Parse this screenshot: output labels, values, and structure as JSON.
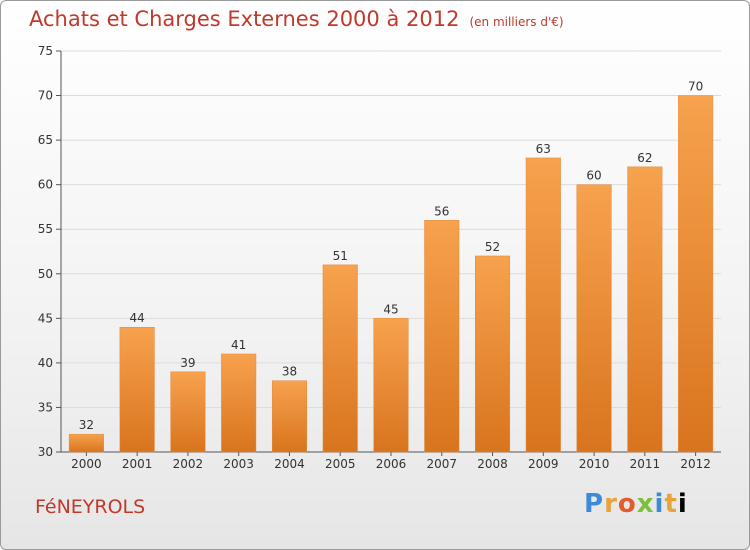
{
  "header": {
    "title": "Achats et Charges Externes 2000 à 2012",
    "unit": "(en milliers d'€)"
  },
  "footer": {
    "city": "FéNEYROLS",
    "logo": [
      "P",
      "r",
      "o",
      "x",
      "i",
      "t",
      "i"
    ]
  },
  "chart_data": {
    "type": "bar",
    "title": "Achats et Charges Externes 2000 à 2012",
    "subtitle": "(en milliers d'€)",
    "categories": [
      "2000",
      "2001",
      "2002",
      "2003",
      "2004",
      "2005",
      "2006",
      "2007",
      "2008",
      "2009",
      "2010",
      "2011",
      "2012"
    ],
    "values": [
      32,
      44,
      39,
      41,
      38,
      51,
      45,
      56,
      52,
      63,
      60,
      62,
      70
    ],
    "ylim": [
      30,
      75
    ],
    "yticks": [
      30,
      35,
      40,
      45,
      50,
      55,
      60,
      65,
      70,
      75
    ],
    "grid": true,
    "bar_color": "#f0913a"
  }
}
